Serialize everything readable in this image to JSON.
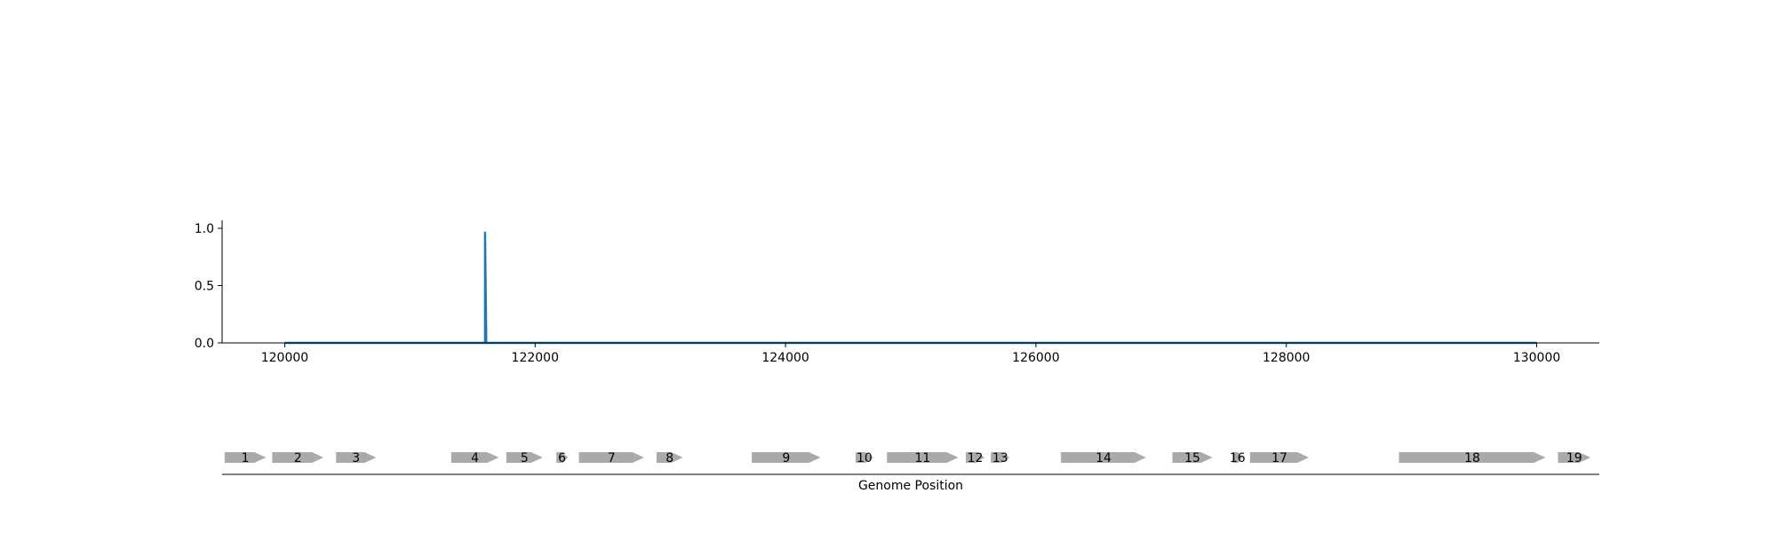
{
  "chart_data": [
    {
      "type": "line",
      "title": "",
      "xlabel": "",
      "ylabel": "",
      "xlim": [
        119500,
        130500
      ],
      "ylim": [
        0,
        1.07
      ],
      "x_ticks": [
        120000,
        122000,
        124000,
        126000,
        128000,
        130000
      ],
      "x_tick_labels": [
        "120000",
        "122000",
        "124000",
        "126000",
        "128000",
        "130000"
      ],
      "y_ticks": [
        0,
        0.5,
        1
      ],
      "y_tick_labels": [
        "0.0",
        "0.5",
        "1.0"
      ],
      "grid": false,
      "series": [
        {
          "color": "#1f77b4",
          "x": [
            120000,
            121600,
            121600,
            121600,
            121610,
            130000
          ],
          "y": [
            0,
            0,
            0.97,
            0.97,
            0,
            0
          ]
        }
      ]
    },
    {
      "type": "gene_track",
      "xlabel": "Genome Position",
      "xlim": [
        119500,
        130500
      ],
      "gene_color": "#aaaaaa",
      "genes": [
        {
          "label": "1",
          "start": 119520,
          "end": 119850,
          "strand": "+"
        },
        {
          "label": "2",
          "start": 119900,
          "end": 120310,
          "strand": "+"
        },
        {
          "label": "3",
          "start": 120410,
          "end": 120730,
          "strand": "+"
        },
        {
          "label": "4",
          "start": 121330,
          "end": 121710,
          "strand": "+"
        },
        {
          "label": "5",
          "start": 121770,
          "end": 122060,
          "strand": "+"
        },
        {
          "label": "6",
          "start": 122170,
          "end": 122260,
          "strand": "+"
        },
        {
          "label": "7",
          "start": 122350,
          "end": 122870,
          "strand": "+"
        },
        {
          "label": "8",
          "start": 122970,
          "end": 123180,
          "strand": "+"
        },
        {
          "label": "9",
          "start": 123730,
          "end": 124280,
          "strand": "+"
        },
        {
          "label": "10",
          "start": 124560,
          "end": 124700,
          "strand": "+"
        },
        {
          "label": "11",
          "start": 124810,
          "end": 125380,
          "strand": "+"
        },
        {
          "label": "12",
          "start": 125440,
          "end": 125590,
          "strand": "+"
        },
        {
          "label": "13",
          "start": 125640,
          "end": 125790,
          "strand": "+"
        },
        {
          "label": "14",
          "start": 126200,
          "end": 126880,
          "strand": "+"
        },
        {
          "label": "15",
          "start": 127090,
          "end": 127410,
          "strand": "+"
        },
        {
          "label": "16",
          "start": 127570,
          "end": 127650,
          "strand": "+"
        },
        {
          "label": "17",
          "start": 127710,
          "end": 128180,
          "strand": "+"
        },
        {
          "label": "18",
          "start": 128900,
          "end": 130070,
          "strand": "+"
        },
        {
          "label": "19",
          "start": 130170,
          "end": 130430,
          "strand": "+"
        }
      ]
    }
  ]
}
